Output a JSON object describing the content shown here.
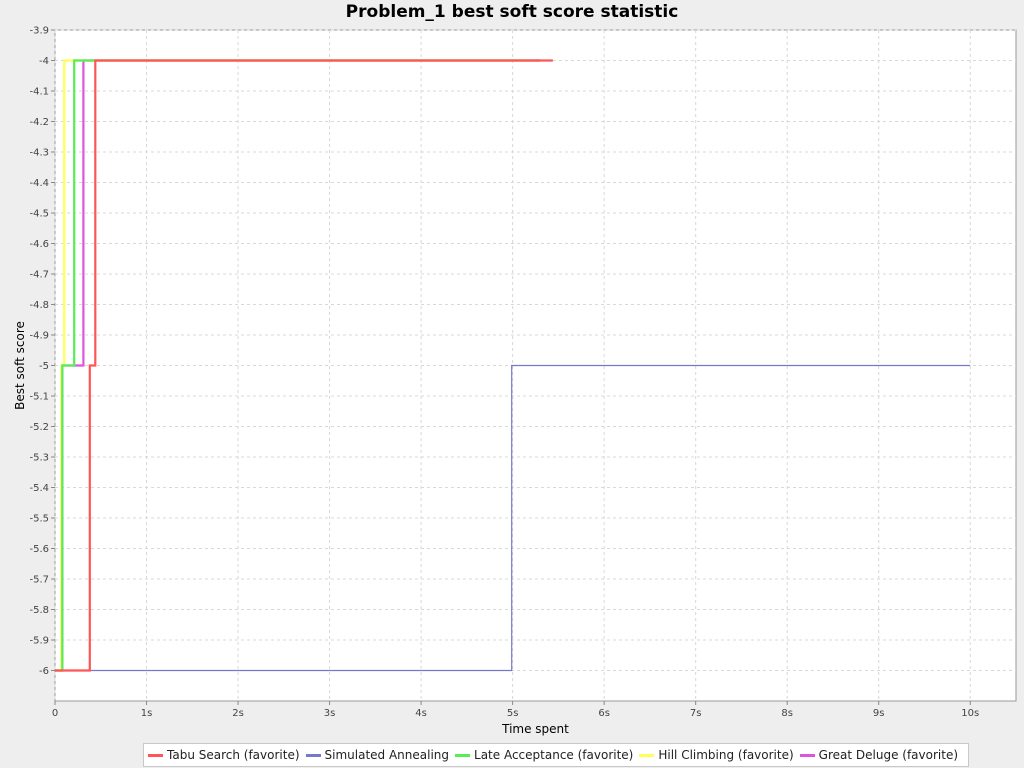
{
  "chart_data": {
    "type": "line",
    "title": "Problem_1 best soft score statistic",
    "xlabel": "Time spent",
    "ylabel": "Best soft score",
    "xlim": [
      0,
      10.5
    ],
    "ylim": [
      -6.1,
      -3.9
    ],
    "x_ticks": [
      0,
      1,
      2,
      3,
      4,
      5,
      6,
      7,
      8,
      9,
      10
    ],
    "x_tick_labels": [
      "0",
      "1s",
      "2s",
      "3s",
      "4s",
      "5s",
      "6s",
      "7s",
      "8s",
      "9s",
      "10s"
    ],
    "y_ticks": [
      -3.9,
      -4,
      -4.1,
      -4.2,
      -4.3,
      -4.4,
      -4.5,
      -4.6,
      -4.7,
      -4.8,
      -4.9,
      -5,
      -5.1,
      -5.2,
      -5.3,
      -5.4,
      -5.5,
      -5.6,
      -5.7,
      -5.8,
      -5.9,
      -6
    ],
    "y_tick_labels": [
      "-3.9",
      "-4",
      "-4.1",
      "-4.2",
      "-4.3",
      "-4.4",
      "-4.5",
      "-4.6",
      "-4.7",
      "-4.8",
      "-4.9",
      "-5",
      "-5.1",
      "-5.2",
      "-5.3",
      "-5.4",
      "-5.5",
      "-5.6",
      "-5.7",
      "-5.8",
      "-5.9",
      "-6"
    ],
    "grid": true,
    "legend_position": "bottom",
    "series": [
      {
        "name": "Simulated Annealing",
        "color": "#7777cc",
        "step": true,
        "x": [
          0,
          4.99,
          4.99,
          10
        ],
        "y": [
          -6,
          -6,
          -5,
          -5
        ]
      },
      {
        "name": "Great Deluge (favorite)",
        "color": "#dd55dd",
        "step": true,
        "x": [
          0,
          0.08,
          0.08,
          0.31,
          0.31,
          5.3
        ],
        "y": [
          -6,
          -6,
          -5,
          -5,
          -4,
          -4
        ]
      },
      {
        "name": "Hill Climbing (favorite)",
        "color": "#ffff55",
        "step": true,
        "x": [
          0,
          0.07,
          0.07,
          0.1,
          0.1,
          5.2
        ],
        "y": [
          -6,
          -6,
          -5,
          -5,
          -4,
          -4
        ]
      },
      {
        "name": "Late Acceptance (favorite)",
        "color": "#55ee55",
        "step": true,
        "x": [
          0,
          0.08,
          0.08,
          0.21,
          0.21,
          5.3
        ],
        "y": [
          -6,
          -6,
          -5,
          -5,
          -4,
          -4
        ]
      },
      {
        "name": "Tabu Search (favorite)",
        "color": "#ff5555",
        "step": true,
        "x": [
          0,
          0.38,
          0.38,
          0.44,
          0.44,
          5.44
        ],
        "y": [
          -6,
          -6,
          -5,
          -5,
          -4,
          -4
        ]
      }
    ],
    "legend_order": [
      "Tabu Search (favorite)",
      "Simulated Annealing",
      "Late Acceptance (favorite)",
      "Hill Climbing (favorite)",
      "Great Deluge (favorite)"
    ]
  }
}
